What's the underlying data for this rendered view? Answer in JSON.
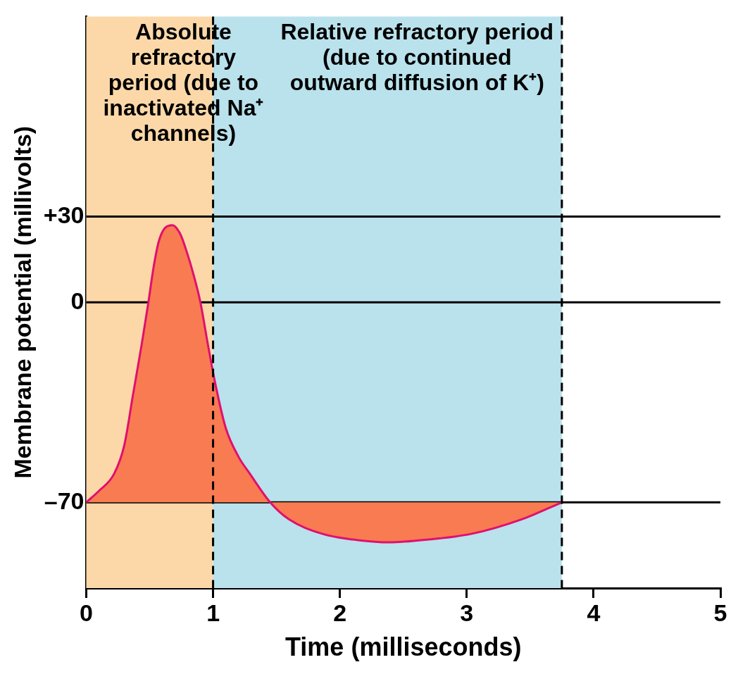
{
  "chart_data": {
    "type": "area",
    "xlabel": "Time (milliseconds)",
    "ylabel": "Membrane potential (millivolts)",
    "xlim": [
      0,
      5
    ],
    "xticks": [
      0,
      1,
      2,
      3,
      4,
      5
    ],
    "ylim": [
      -100,
      100
    ],
    "yticks": [
      {
        "value": 30,
        "label": "+30"
      },
      0,
      {
        "value": -70,
        "label": "–70"
      }
    ],
    "grid": "y",
    "legend": false,
    "series": [
      {
        "color": "#e0106e",
        "x": [
          0,
          0.1,
          0.22,
          0.3,
          0.37,
          0.44,
          0.49,
          0.53,
          0.57,
          0.62,
          0.68,
          0.74,
          0.79,
          0.85,
          0.9,
          0.96,
          1.02,
          1.1,
          1.2,
          1.29,
          1.45,
          1.6,
          1.86,
          2.1,
          2.39,
          2.7,
          3.04,
          3.43,
          3.75
        ],
        "values": [
          -70,
          -66,
          -60,
          -50,
          -32,
          -14,
          0,
          12,
          21,
          26,
          27,
          24,
          18,
          9,
          0,
          -15,
          -29,
          -44,
          -54,
          -60,
          -70,
          -76,
          -81,
          -83,
          -84,
          -83,
          -81,
          -76,
          -70
        ]
      }
    ],
    "bands": [
      {
        "axis": "x",
        "from": 0,
        "to": 1,
        "color": "#fcd8a8",
        "label": "Absolute refractory period (due to inactivated Na⁺ channels)"
      },
      {
        "axis": "x",
        "from": 1,
        "to": 3.75,
        "color": "#b9e2ec",
        "label": "Relative refractory period (due to continued outward diffusion of K⁺)"
      }
    ],
    "ref_lines": [
      {
        "axis": "x",
        "value": 1,
        "line_style": "dashed",
        "color": "#000000"
      },
      {
        "axis": "x",
        "value": 3.75,
        "line_style": "dashed",
        "color": "#000000"
      }
    ]
  }
}
